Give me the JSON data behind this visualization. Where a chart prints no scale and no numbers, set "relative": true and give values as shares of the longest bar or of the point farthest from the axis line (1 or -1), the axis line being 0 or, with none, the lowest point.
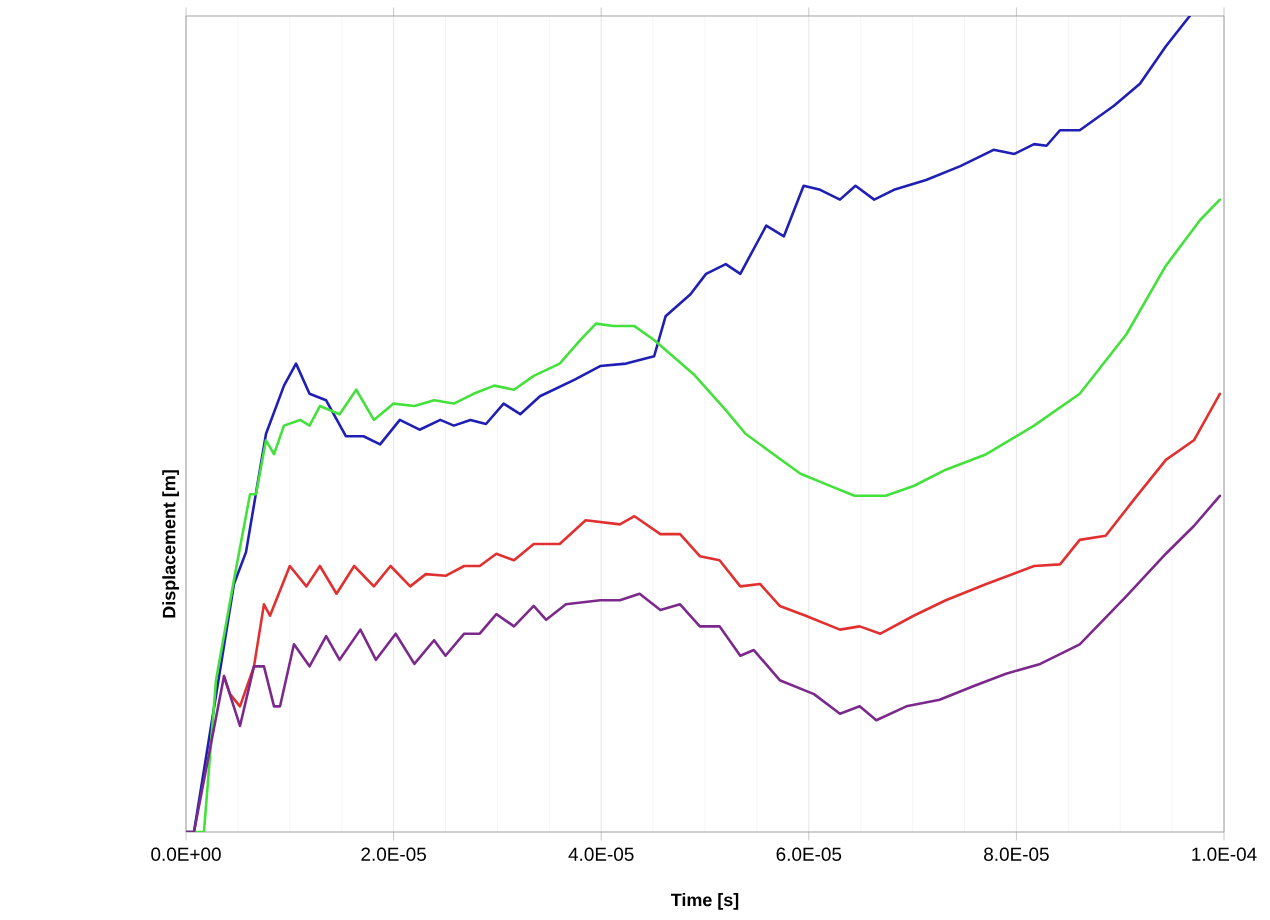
{
  "chart_data": {
    "type": "line",
    "relative": true,
    "xlabel": "Time  [s]",
    "ylabel": "Displacement  [m]",
    "grid": true,
    "xlim": [
      0,
      0.0001
    ],
    "xticks": [
      {
        "value": 0,
        "label": "0.0E+00"
      },
      {
        "value": 2e-05,
        "label": "2.0E-05"
      },
      {
        "value": 4e-05,
        "label": "4.0E-05"
      },
      {
        "value": 6e-05,
        "label": "6.0E-05"
      },
      {
        "value": 8e-05,
        "label": "8.0E-05"
      },
      {
        "value": 0.0001,
        "label": "1.0E-04"
      }
    ],
    "series": [
      {
        "color": "#1f1fb4",
        "x": [
          0,
          7.7e-07,
          4.62e-06,
          5.78e-06,
          7.71e-06,
          9.44e-06,
          1.06e-05,
          1.19e-05,
          1.35e-05,
          1.54e-05,
          1.71e-05,
          1.87e-05,
          2.06e-05,
          2.25e-05,
          2.45e-05,
          2.58e-05,
          2.74e-05,
          2.89e-05,
          3.06e-05,
          3.22e-05,
          3.41e-05,
          3.74e-05,
          3.99e-05,
          4.24e-05,
          4.51e-05,
          4.62e-05,
          4.86e-05,
          5.01e-05,
          5.2e-05,
          5.34e-05,
          5.59e-05,
          5.76e-05,
          5.95e-05,
          6.11e-05,
          6.3e-05,
          6.45e-05,
          6.63e-05,
          6.82e-05,
          7.13e-05,
          7.46e-05,
          7.78e-05,
          7.98e-05,
          8.17e-05,
          8.29e-05,
          8.42e-05,
          8.61e-05,
          8.94e-05,
          9.19e-05,
          9.44e-05,
          9.67e-05
        ],
        "values": [
          0,
          0,
          0.304,
          0.343,
          0.488,
          0.547,
          0.574,
          0.537,
          0.529,
          0.485,
          0.485,
          0.475,
          0.505,
          0.493,
          0.505,
          0.498,
          0.505,
          0.5,
          0.525,
          0.512,
          0.534,
          0.554,
          0.571,
          0.574,
          0.583,
          0.632,
          0.659,
          0.684,
          0.696,
          0.684,
          0.743,
          0.73,
          0.792,
          0.787,
          0.775,
          0.792,
          0.775,
          0.787,
          0.799,
          0.816,
          0.836,
          0.831,
          0.843,
          0.841,
          0.86,
          0.86,
          0.89,
          0.917,
          0.963,
          1.0
        ]
      },
      {
        "color": "#44e03c",
        "x": [
          0,
          1.73e-06,
          2.89e-06,
          4.62e-06,
          6.17e-06,
          6.74e-06,
          7.71e-06,
          8.48e-06,
          9.44e-06,
          1.1e-05,
          1.19e-05,
          1.29e-05,
          1.48e-05,
          1.64e-05,
          1.81e-05,
          2e-05,
          2.2e-05,
          2.39e-05,
          2.58e-05,
          2.77e-05,
          2.97e-05,
          3.16e-05,
          3.35e-05,
          3.6e-05,
          3.8e-05,
          3.95e-05,
          4.12e-05,
          4.32e-05,
          4.51e-05,
          4.89e-05,
          5.2e-05,
          5.39e-05,
          5.66e-05,
          5.92e-05,
          6.17e-05,
          6.44e-05,
          6.74e-05,
          7.01e-05,
          7.32e-05,
          7.71e-05,
          8.17e-05,
          8.61e-05,
          9.06e-05,
          9.44e-05,
          9.77e-05,
          9.96e-05
        ],
        "values": [
          0,
          0,
          0.186,
          0.309,
          0.414,
          0.414,
          0.48,
          0.463,
          0.498,
          0.505,
          0.498,
          0.522,
          0.512,
          0.542,
          0.505,
          0.525,
          0.522,
          0.529,
          0.525,
          0.537,
          0.547,
          0.542,
          0.559,
          0.574,
          0.603,
          0.623,
          0.62,
          0.62,
          0.603,
          0.561,
          0.517,
          0.488,
          0.463,
          0.439,
          0.426,
          0.412,
          0.412,
          0.424,
          0.444,
          0.463,
          0.498,
          0.537,
          0.61,
          0.694,
          0.75,
          0.775
        ]
      },
      {
        "color": "#e03030",
        "x": [
          3.66e-06,
          4.24e-06,
          5.2e-06,
          6.55e-06,
          7.51e-06,
          8.09e-06,
          1e-05,
          1.16e-05,
          1.29e-05,
          1.45e-05,
          1.62e-05,
          1.81e-05,
          1.97e-05,
          2.16e-05,
          2.31e-05,
          2.5e-05,
          2.68e-05,
          2.83e-05,
          2.99e-05,
          3.16e-05,
          3.35e-05,
          3.6e-05,
          3.85e-05,
          4.18e-05,
          4.32e-05,
          4.57e-05,
          4.76e-05,
          4.95e-05,
          5.14e-05,
          5.34e-05,
          5.53e-05,
          5.72e-05,
          5.97e-05,
          6.3e-05,
          6.49e-05,
          6.69e-05,
          7.01e-05,
          7.32e-05,
          7.71e-05,
          8.17e-05,
          8.42e-05,
          8.61e-05,
          8.86e-05,
          9.13e-05,
          9.44e-05,
          9.71e-05,
          9.96e-05
        ],
        "values": [
          0.191,
          0.169,
          0.154,
          0.203,
          0.279,
          0.265,
          0.326,
          0.301,
          0.326,
          0.292,
          0.326,
          0.301,
          0.326,
          0.301,
          0.316,
          0.314,
          0.326,
          0.326,
          0.341,
          0.333,
          0.353,
          0.353,
          0.382,
          0.377,
          0.387,
          0.365,
          0.365,
          0.338,
          0.333,
          0.301,
          0.304,
          0.277,
          0.265,
          0.248,
          0.252,
          0.243,
          0.265,
          0.284,
          0.304,
          0.326,
          0.328,
          0.358,
          0.363,
          0.407,
          0.456,
          0.48,
          0.537
        ]
      },
      {
        "color": "#7b2a8c",
        "x": [
          0,
          7.7e-07,
          3.66e-06,
          5.2e-06,
          6.55e-06,
          7.51e-06,
          8.48e-06,
          9.06e-06,
          1.04e-05,
          1.19e-05,
          1.35e-05,
          1.48e-05,
          1.68e-05,
          1.83e-05,
          2.02e-05,
          2.2e-05,
          2.39e-05,
          2.5e-05,
          2.68e-05,
          2.83e-05,
          2.99e-05,
          3.16e-05,
          3.35e-05,
          3.47e-05,
          3.66e-05,
          3.99e-05,
          4.18e-05,
          4.37e-05,
          4.57e-05,
          4.76e-05,
          4.95e-05,
          5.14e-05,
          5.34e-05,
          5.47e-05,
          5.72e-05,
          6.05e-05,
          6.3e-05,
          6.49e-05,
          6.65e-05,
          6.94e-05,
          7.26e-05,
          7.59e-05,
          7.9e-05,
          8.23e-05,
          8.61e-05,
          9.06e-05,
          9.44e-05,
          9.71e-05,
          9.96e-05
        ],
        "values": [
          0,
          0,
          0.191,
          0.13,
          0.203,
          0.203,
          0.154,
          0.154,
          0.23,
          0.203,
          0.24,
          0.211,
          0.248,
          0.211,
          0.243,
          0.206,
          0.235,
          0.216,
          0.243,
          0.243,
          0.267,
          0.252,
          0.277,
          0.26,
          0.279,
          0.284,
          0.284,
          0.292,
          0.272,
          0.279,
          0.252,
          0.252,
          0.216,
          0.223,
          0.186,
          0.169,
          0.145,
          0.154,
          0.137,
          0.154,
          0.162,
          0.179,
          0.194,
          0.206,
          0.23,
          0.289,
          0.341,
          0.375,
          0.412
        ]
      }
    ]
  }
}
